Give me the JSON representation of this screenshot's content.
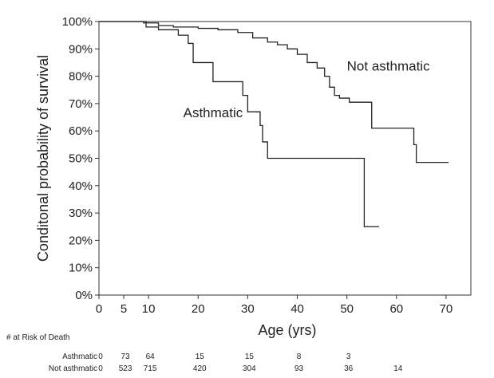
{
  "chart_data": {
    "type": "line",
    "step": true,
    "xlabel": "Age (yrs)",
    "ylabel": "Conditonal probability of survival",
    "xlim": [
      0,
      75
    ],
    "ylim": [
      0,
      100
    ],
    "x_ticks": [
      0,
      5,
      10,
      20,
      30,
      40,
      50,
      60,
      70
    ],
    "y_ticks": [
      0,
      10,
      20,
      30,
      40,
      50,
      60,
      70,
      80,
      90,
      100
    ],
    "y_tick_suffix": "%",
    "grid": false,
    "series": [
      {
        "name": "Not asthmatic",
        "color": "#222222",
        "points": [
          [
            0,
            100
          ],
          [
            7,
            100
          ],
          [
            9,
            99.5
          ],
          [
            12,
            98.5
          ],
          [
            15,
            98
          ],
          [
            20,
            97.5
          ],
          [
            24,
            97
          ],
          [
            28,
            96
          ],
          [
            31,
            94
          ],
          [
            34,
            92.5
          ],
          [
            36,
            91.5
          ],
          [
            38,
            90
          ],
          [
            40,
            88
          ],
          [
            42,
            85
          ],
          [
            44,
            83
          ],
          [
            45.5,
            80
          ],
          [
            46.5,
            76
          ],
          [
            47.5,
            73
          ],
          [
            48.5,
            72
          ],
          [
            50.5,
            70.5
          ],
          [
            51.5,
            70.5
          ],
          [
            53.5,
            70.5
          ],
          [
            55,
            61
          ],
          [
            63,
            61
          ],
          [
            63.5,
            55
          ],
          [
            64,
            48.5
          ],
          [
            70.5,
            48.5
          ]
        ]
      },
      {
        "name": "Asthmatic",
        "color": "#222222",
        "points": [
          [
            0,
            100
          ],
          [
            9,
            100
          ],
          [
            9.5,
            98
          ],
          [
            12,
            97
          ],
          [
            16,
            95
          ],
          [
            18,
            92
          ],
          [
            19,
            85
          ],
          [
            22,
            85
          ],
          [
            23,
            78
          ],
          [
            28,
            78
          ],
          [
            29,
            73
          ],
          [
            30,
            67
          ],
          [
            32,
            67
          ],
          [
            32.5,
            62
          ],
          [
            33,
            56
          ],
          [
            34,
            50
          ],
          [
            53,
            50
          ],
          [
            53.5,
            25
          ],
          [
            56.5,
            25
          ]
        ]
      }
    ],
    "annotations": [
      "Not asthmatic",
      "Asthmatic"
    ],
    "risk_table": {
      "title": "# at Risk of Death",
      "columns_x": [
        0,
        5,
        10,
        20,
        30,
        40,
        50,
        60
      ],
      "rows": [
        {
          "label": "Asthmatic",
          "values": [
            "0",
            "73",
            "64",
            "15",
            "15",
            "8",
            "3",
            ""
          ]
        },
        {
          "label": "Not asthmatic",
          "values": [
            "0",
            "523",
            "715",
            "420",
            "304",
            "93",
            "36",
            "14"
          ]
        }
      ]
    }
  }
}
